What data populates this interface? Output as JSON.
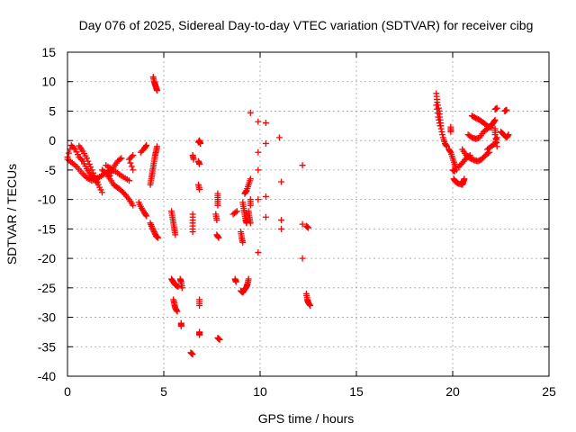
{
  "chart_data": {
    "type": "scatter",
    "title": "Day 076 of 2025, Sidereal Day-to-day VTEC variation (SDTVAR) for receiver cibg",
    "xlabel": "GPS time / hours",
    "ylabel": "SDTVAR / TECUs",
    "xlim": [
      0,
      25
    ],
    "ylim": [
      -40,
      15
    ],
    "xticks": [
      0,
      5,
      10,
      15,
      20,
      25
    ],
    "yticks": [
      -40,
      -35,
      -30,
      -25,
      -20,
      -15,
      -10,
      -5,
      0,
      5,
      10,
      15
    ],
    "grid": true,
    "marker": "plus",
    "color": "#ff0000",
    "series": [
      {
        "name": "SDTVAR",
        "segments": [
          [
            [
              0.0,
              -2.8
            ],
            [
              0.2,
              -0.8
            ],
            [
              0.4,
              -1.5
            ],
            [
              0.6,
              -2.8
            ],
            [
              0.8,
              -3.5
            ],
            [
              1.0,
              -4.8
            ],
            [
              1.2,
              -5.8
            ],
            [
              1.4,
              -6.5
            ],
            [
              1.6,
              -7.5
            ],
            [
              1.8,
              -8.8
            ]
          ],
          [
            [
              0.0,
              -3.2
            ],
            [
              0.25,
              -3.8
            ],
            [
              0.5,
              -4.5
            ],
            [
              0.75,
              -5.5
            ],
            [
              1.0,
              -6.3
            ],
            [
              1.25,
              -6.8
            ],
            [
              1.5,
              -6.5
            ],
            [
              1.75,
              -6.0
            ],
            [
              2.0,
              -5.5
            ],
            [
              2.2,
              -5.0
            ]
          ],
          [
            [
              0.6,
              -0.9
            ],
            [
              0.8,
              -1.8
            ],
            [
              1.0,
              -3.0
            ],
            [
              1.2,
              -4.5
            ],
            [
              1.4,
              -6.0
            ],
            [
              1.55,
              -7.0
            ]
          ],
          [
            [
              1.8,
              -5.0
            ],
            [
              2.0,
              -5.5
            ],
            [
              2.2,
              -6.5
            ],
            [
              2.4,
              -7.5
            ],
            [
              2.6,
              -8.0
            ],
            [
              2.8,
              -8.5
            ],
            [
              3.0,
              -9.2
            ],
            [
              3.2,
              -10.0
            ],
            [
              3.4,
              -11.0
            ]
          ],
          [
            [
              2.0,
              -4.2
            ],
            [
              2.3,
              -4.8
            ],
            [
              2.6,
              -5.5
            ],
            [
              2.9,
              -6.2
            ],
            [
              3.2,
              -6.8
            ]
          ],
          [
            [
              2.2,
              -6.0
            ],
            [
              2.4,
              -4.5
            ],
            [
              2.6,
              -3.5
            ],
            [
              2.8,
              -3.0
            ]
          ],
          [
            [
              3.4,
              -2.5
            ],
            [
              3.2,
              -3.2
            ],
            [
              3.4,
              -5.0
            ]
          ],
          [
            [
              3.7,
              -10.5
            ],
            [
              3.85,
              -11.5
            ],
            [
              4.0,
              -12.3
            ],
            [
              4.1,
              -12.8
            ]
          ],
          [
            [
              3.8,
              -2.0
            ],
            [
              4.0,
              -1.3
            ],
            [
              4.1,
              -0.8
            ]
          ],
          [
            [
              4.3,
              -14.0
            ],
            [
              4.4,
              -14.8
            ],
            [
              4.5,
              -15.5
            ],
            [
              4.6,
              -16.2
            ],
            [
              4.7,
              -16.5
            ]
          ],
          [
            [
              4.3,
              -7.5
            ],
            [
              4.35,
              -6.5
            ],
            [
              4.4,
              -5.5
            ],
            [
              4.45,
              -4.5
            ],
            [
              4.5,
              -3.5
            ],
            [
              4.55,
              -2.5
            ],
            [
              4.6,
              -1.8
            ],
            [
              4.65,
              -1.0
            ]
          ],
          [
            [
              4.45,
              10.8
            ],
            [
              4.5,
              10.0
            ],
            [
              4.55,
              9.5
            ],
            [
              4.6,
              9.0
            ],
            [
              4.65,
              8.5
            ]
          ],
          [
            [
              5.4,
              -12.0
            ],
            [
              5.45,
              -13.0
            ],
            [
              5.5,
              -14.0
            ],
            [
              5.55,
              -15.0
            ],
            [
              5.6,
              -16.0
            ]
          ],
          [
            [
              5.4,
              -23.5
            ],
            [
              5.5,
              -24.0
            ],
            [
              5.6,
              -24.5
            ],
            [
              5.75,
              -24.8
            ]
          ],
          [
            [
              5.5,
              -27.0
            ],
            [
              5.55,
              -27.8
            ],
            [
              5.6,
              -28.5
            ],
            [
              5.7,
              -29.0
            ]
          ],
          [
            [
              5.85,
              -23.5
            ],
            [
              5.9,
              -24.0
            ],
            [
              5.95,
              -25.0
            ]
          ],
          [
            [
              5.9,
              -31.0
            ],
            [
              5.9,
              -31.5
            ]
          ],
          [
            [
              6.4,
              -36.0
            ],
            [
              6.5,
              -36.3
            ]
          ],
          [
            [
              6.5,
              -12.5
            ],
            [
              6.5,
              -14.0
            ],
            [
              6.5,
              -15.5
            ]
          ],
          [
            [
              6.5,
              -2.5
            ],
            [
              6.55,
              -3.2
            ]
          ],
          [
            [
              6.8,
              -0.3
            ],
            [
              6.85,
              0.0
            ],
            [
              6.9,
              -0.5
            ]
          ],
          [
            [
              6.8,
              -3.5
            ],
            [
              6.85,
              -4.0
            ]
          ],
          [
            [
              6.8,
              -7.5
            ],
            [
              6.85,
              -8.3
            ]
          ],
          [
            [
              6.85,
              -27.0
            ],
            [
              6.85,
              -28.0
            ]
          ],
          [
            [
              6.85,
              -32.5
            ],
            [
              6.85,
              -33.0
            ]
          ],
          [
            [
              7.8,
              -9.0
            ],
            [
              7.8,
              -10.0
            ],
            [
              7.8,
              -11.0
            ]
          ],
          [
            [
              7.7,
              -12.5
            ],
            [
              7.75,
              -13.5
            ]
          ],
          [
            [
              7.75,
              -16.0
            ],
            [
              7.85,
              -16.5
            ]
          ],
          [
            [
              7.8,
              -33.5
            ],
            [
              7.9,
              -33.8
            ]
          ],
          [
            [
              8.6,
              -12.5
            ],
            [
              8.8,
              -12.0
            ]
          ],
          [
            [
              8.7,
              -23.5
            ],
            [
              8.75,
              -24.0
            ]
          ],
          [
            [
              9.0,
              -25.5
            ],
            [
              9.1,
              -25.8
            ],
            [
              9.2,
              -25.3
            ],
            [
              9.3,
              -24.8
            ],
            [
              9.35,
              -24.3
            ],
            [
              9.4,
              -23.5
            ]
          ],
          [
            [
              9.0,
              -15.5
            ],
            [
              9.05,
              -16.5
            ],
            [
              9.1,
              -17.3
            ]
          ],
          [
            [
              9.1,
              -10.5
            ],
            [
              9.15,
              -11.5
            ],
            [
              9.2,
              -12.5
            ],
            [
              9.25,
              -13.5
            ],
            [
              9.3,
              -14.0
            ]
          ],
          [
            [
              9.2,
              -9.0
            ],
            [
              9.3,
              -8.5
            ],
            [
              9.4,
              -7.5
            ],
            [
              9.5,
              -6.5
            ]
          ],
          [
            [
              9.4,
              -12.0
            ],
            [
              9.45,
              -13.0
            ],
            [
              9.5,
              -14.0
            ]
          ],
          [
            [
              9.5,
              -10.0
            ],
            [
              9.5,
              -11.0
            ]
          ],
          [
            [
              9.5,
              4.7
            ]
          ],
          [
            [
              9.9,
              3.2
            ]
          ],
          [
            [
              9.9,
              -2.0
            ]
          ],
          [
            [
              9.9,
              -5.0
            ]
          ],
          [
            [
              9.9,
              -10.0
            ]
          ],
          [
            [
              9.9,
              -19.0
            ]
          ],
          [
            [
              10.3,
              3.0
            ]
          ],
          [
            [
              10.3,
              -0.5
            ]
          ],
          [
            [
              10.3,
              -9.5
            ]
          ],
          [
            [
              10.3,
              -13.0
            ]
          ],
          [
            [
              11.0,
              0.5
            ]
          ],
          [
            [
              11.1,
              -7.0
            ]
          ],
          [
            [
              11.1,
              -13.5
            ]
          ],
          [
            [
              11.1,
              -15.0
            ]
          ],
          [
            [
              12.2,
              -4.2
            ]
          ],
          [
            [
              12.2,
              -14.2
            ]
          ],
          [
            [
              12.2,
              -20.0
            ]
          ],
          [
            [
              12.4,
              -14.5
            ],
            [
              12.5,
              -14.8
            ]
          ],
          [
            [
              12.4,
              -26.0
            ],
            [
              12.45,
              -27.0
            ],
            [
              12.5,
              -27.5
            ],
            [
              12.6,
              -28.0
            ]
          ],
          [
            [
              19.15,
              8.0
            ],
            [
              19.2,
              6.5
            ],
            [
              19.3,
              5.0
            ],
            [
              19.35,
              3.5
            ],
            [
              19.4,
              2.0
            ],
            [
              19.5,
              0.5
            ],
            [
              19.6,
              -0.5
            ],
            [
              19.7,
              -1.0
            ]
          ],
          [
            [
              19.15,
              6.0
            ],
            [
              19.25,
              4.0
            ],
            [
              19.35,
              2.5
            ]
          ],
          [
            [
              19.8,
              -1.5
            ],
            [
              19.9,
              -2.0
            ],
            [
              20.0,
              -3.0
            ],
            [
              20.1,
              -4.0
            ],
            [
              20.2,
              -5.0
            ]
          ],
          [
            [
              19.9,
              2.3
            ],
            [
              19.9,
              1.5
            ]
          ],
          [
            [
              20.05,
              -6.5
            ],
            [
              20.15,
              -7.0
            ],
            [
              20.3,
              -7.3
            ],
            [
              20.5,
              -7.5
            ],
            [
              20.55,
              -7.0
            ],
            [
              20.6,
              -6.5
            ]
          ],
          [
            [
              20.0,
              -5.0
            ],
            [
              20.1,
              -5.2
            ]
          ],
          [
            [
              20.5,
              -1.5
            ],
            [
              20.7,
              -2.5
            ],
            [
              20.9,
              -3.0
            ],
            [
              21.1,
              -3.3
            ],
            [
              21.3,
              -3.5
            ],
            [
              21.5,
              -3.2
            ],
            [
              21.7,
              -2.5
            ],
            [
              21.9,
              -2.0
            ]
          ],
          [
            [
              20.8,
              1.0
            ],
            [
              21.0,
              0.5
            ],
            [
              21.2,
              0.3
            ],
            [
              21.4,
              0.5
            ],
            [
              21.6,
              1.5
            ],
            [
              21.8,
              2.0
            ],
            [
              22.0,
              2.5
            ],
            [
              22.1,
              3.0
            ],
            [
              22.2,
              3.5
            ]
          ],
          [
            [
              20.3,
              -4.5
            ],
            [
              20.5,
              -3.8
            ],
            [
              20.7,
              -3.0
            ],
            [
              20.9,
              -2.5
            ]
          ],
          [
            [
              21.0,
              4.2
            ],
            [
              21.2,
              3.8
            ],
            [
              21.4,
              3.5
            ],
            [
              21.6,
              3.0
            ],
            [
              21.8,
              2.5
            ],
            [
              22.0,
              2.2
            ]
          ],
          [
            [
              21.8,
              -1.5
            ],
            [
              22.0,
              -1.0
            ],
            [
              22.2,
              -0.5
            ],
            [
              22.3,
              0.5
            ]
          ],
          [
            [
              22.2,
              5.3
            ],
            [
              22.3,
              5.5
            ]
          ],
          [
            [
              22.7,
              5.0
            ],
            [
              22.8,
              5.2
            ]
          ],
          [
            [
              22.5,
              1.5
            ],
            [
              22.65,
              1.0
            ],
            [
              22.8,
              0.5
            ],
            [
              22.9,
              1.0
            ]
          ],
          [
            [
              22.2,
              2.0
            ],
            [
              22.2,
              1.0
            ],
            [
              22.3,
              -1.0
            ]
          ]
        ]
      }
    ]
  }
}
